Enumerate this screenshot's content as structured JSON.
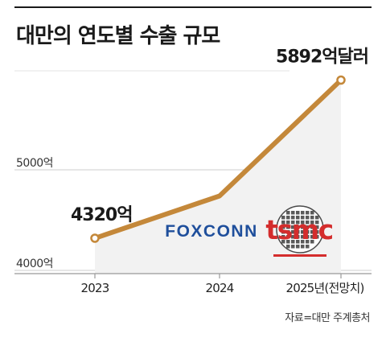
{
  "title": "대만의 연도별 수출 규모",
  "source": "자료=대만 주계총처",
  "colors": {
    "line": "#c4883a",
    "area": "#f2f2f2",
    "grid": "#cccccc",
    "foxconn": "#1f4f9c",
    "tsmc": "#d42d2d"
  },
  "logos": {
    "foxconn": "FOXCONN",
    "tsmc": "tsmc"
  },
  "chart_data": {
    "type": "area",
    "x": [
      "2023",
      "2024",
      "2025년(전망치)"
    ],
    "values": [
      4320,
      4740,
      5892
    ],
    "ylim": [
      4000,
      6100
    ],
    "yticks": [
      {
        "value": 4000,
        "label": "4000억"
      },
      {
        "value": 5000,
        "label": "5000억"
      }
    ],
    "annotations": [
      {
        "index": 0,
        "label": "4320억"
      },
      {
        "index": 2,
        "label": "5892억달러"
      }
    ],
    "grid": true,
    "unit": "달러"
  }
}
